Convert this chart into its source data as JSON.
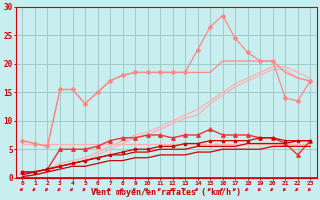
{
  "background_color": "#c8eef0",
  "grid_color": "#a0ccc8",
  "x_values": [
    0,
    1,
    2,
    3,
    4,
    5,
    6,
    7,
    8,
    9,
    10,
    11,
    12,
    13,
    14,
    15,
    16,
    17,
    18,
    19,
    20,
    21,
    22,
    23
  ],
  "line_flat_pink": [
    6.0,
    6.0,
    6.0,
    6.0,
    6.0,
    6.0,
    6.0,
    6.0,
    6.0,
    6.0,
    6.0,
    6.0,
    6.0,
    6.0,
    6.0,
    6.0,
    6.0,
    6.0,
    6.0,
    6.0,
    6.0,
    6.0,
    6.0,
    6.0
  ],
  "line_diag_pink1": [
    0.5,
    1.0,
    1.5,
    2.5,
    3.0,
    3.5,
    4.5,
    5.5,
    6.5,
    7.5,
    8.0,
    9.0,
    10.0,
    11.0,
    12.0,
    13.5,
    15.0,
    16.5,
    17.5,
    18.5,
    19.5,
    19.5,
    18.5,
    17.5
  ],
  "line_diag_pink2": [
    0.0,
    0.5,
    1.0,
    2.0,
    2.5,
    3.0,
    4.0,
    5.0,
    6.0,
    7.0,
    7.5,
    8.5,
    9.5,
    10.5,
    11.0,
    13.0,
    14.5,
    16.0,
    17.0,
    18.0,
    19.0,
    19.0,
    17.5,
    17.0
  ],
  "line_spike_pink": [
    6.5,
    6.0,
    5.5,
    15.5,
    15.5,
    13.0,
    15.0,
    17.0,
    18.0,
    18.5,
    18.5,
    18.5,
    18.5,
    18.5,
    22.5,
    26.5,
    28.5,
    24.5,
    22.0,
    20.5,
    20.5,
    14.0,
    13.5,
    17.0
  ],
  "line_spike_dark": [
    6.5,
    6.0,
    5.5,
    15.5,
    15.5,
    13.0,
    15.0,
    17.0,
    18.0,
    18.5,
    18.5,
    18.5,
    18.5,
    18.5,
    18.5,
    18.5,
    20.5,
    20.5,
    20.5,
    20.5,
    20.5,
    18.5,
    17.5,
    17.0
  ],
  "line_mid_red": [
    1.0,
    1.0,
    1.5,
    5.0,
    5.0,
    5.0,
    5.5,
    6.5,
    7.0,
    7.0,
    7.5,
    7.5,
    7.0,
    7.5,
    7.5,
    8.5,
    7.5,
    7.5,
    7.5,
    7.0,
    7.0,
    6.0,
    4.0,
    6.5
  ],
  "line_red1": [
    1.0,
    1.0,
    1.5,
    2.0,
    2.5,
    3.0,
    3.5,
    4.0,
    4.5,
    5.0,
    5.0,
    5.5,
    5.5,
    6.0,
    6.0,
    6.5,
    6.5,
    6.5,
    6.5,
    7.0,
    7.0,
    6.5,
    6.5,
    6.5
  ],
  "line_red2": [
    0.5,
    1.0,
    1.5,
    2.0,
    2.5,
    3.0,
    3.5,
    4.0,
    4.0,
    4.5,
    4.5,
    5.0,
    5.0,
    5.0,
    5.5,
    5.5,
    5.5,
    5.5,
    6.0,
    6.0,
    6.0,
    6.0,
    6.5,
    6.5
  ],
  "line_red3": [
    0.2,
    0.5,
    1.0,
    1.5,
    2.0,
    2.0,
    2.5,
    3.0,
    3.0,
    3.5,
    3.5,
    4.0,
    4.0,
    4.0,
    4.5,
    4.5,
    5.0,
    5.0,
    5.0,
    5.0,
    5.5,
    5.5,
    5.5,
    5.5
  ],
  "xlabel": "Vent moyen/en rafales ( km/h )",
  "ylim": [
    0,
    30
  ],
  "xlim": [
    -0.5,
    23.5
  ],
  "yticks": [
    0,
    5,
    10,
    15,
    20,
    25,
    30
  ],
  "xticks": [
    0,
    1,
    2,
    3,
    4,
    5,
    6,
    7,
    8,
    9,
    10,
    11,
    12,
    13,
    14,
    15,
    16,
    17,
    18,
    19,
    20,
    21,
    22,
    23
  ],
  "color_light_pink": "#ffb0b0",
  "color_spike_pink": "#ff8888",
  "color_mid_red": "#ee3333",
  "color_dark_red": "#cc0000",
  "color_text": "#cc0000",
  "marker_size": 2.0
}
